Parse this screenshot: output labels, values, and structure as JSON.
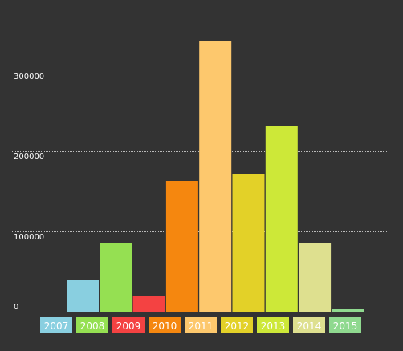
{
  "chart_data": {
    "type": "bar",
    "categories": [
      "2007",
      "2008",
      "2009",
      "2010",
      "2011",
      "2012",
      "2013",
      "2014",
      "2015"
    ],
    "values": [
      40000,
      86000,
      20000,
      163000,
      337000,
      171000,
      231000,
      85000,
      3000
    ],
    "colors": [
      "#89cfe0",
      "#95e052",
      "#f44242",
      "#f5870f",
      "#fdc86d",
      "#e3d128",
      "#cde838",
      "#dee08f",
      "#8fd98f"
    ],
    "background": "#333333",
    "grid_color": "#bbbbbb",
    "yticks": [
      0,
      100000,
      200000,
      300000
    ],
    "ytick_labels": [
      "0",
      "100000",
      "200000",
      "300000"
    ],
    "ylim": [
      0,
      350000
    ],
    "grid": true,
    "legend_position": "bottom",
    "title": "",
    "xlabel": "",
    "ylabel": ""
  }
}
